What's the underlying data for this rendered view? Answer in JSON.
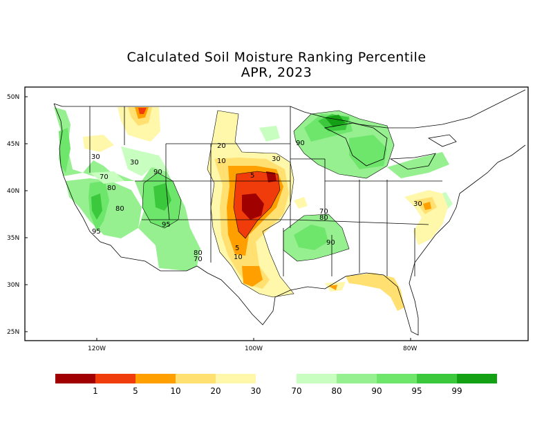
{
  "title": "Calculated Soil Moisture Ranking Percentile",
  "subtitle": "APR, 2023",
  "lat_labels": [
    "50N",
    "45N",
    "40N",
    "35N",
    "30N",
    "25N"
  ],
  "lon_labels": [
    "120W",
    "100W",
    "80W"
  ],
  "contour_labels": [
    "30",
    "30",
    "90",
    "70",
    "80",
    "80",
    "95",
    "95",
    "80",
    "70",
    "20",
    "10",
    "5",
    "30",
    "5",
    "10",
    "90",
    "70",
    "80",
    "90",
    "30"
  ],
  "legend": {
    "dry_colors": [
      "#a00000",
      "#f03c0a",
      "#ffa000",
      "#ffe070",
      "#fff7aa"
    ],
    "wet_colors": [
      "#c8ffc0",
      "#96f090",
      "#6ee66c",
      "#3cc83c",
      "#14a014"
    ],
    "dry_labels": [
      "1",
      "5",
      "10",
      "20",
      "30"
    ],
    "wet_labels": [
      "70",
      "80",
      "90",
      "95",
      "99"
    ]
  }
}
